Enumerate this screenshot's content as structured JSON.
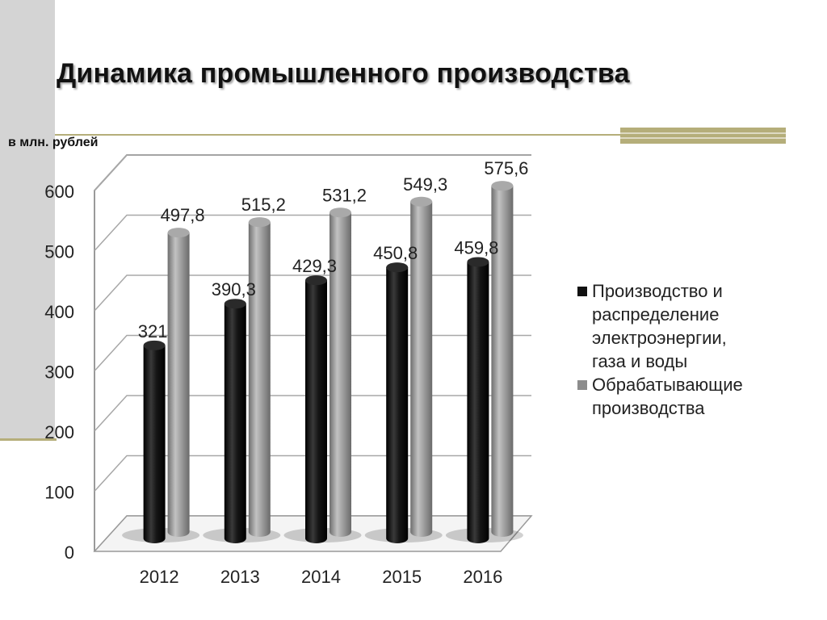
{
  "title": "Динамика промышленного производства",
  "unit_label": "в млн. рублей",
  "colors": {
    "series1": "#111111",
    "series2": "#8c8c8c",
    "accent": "#b5ae7a",
    "side_band": "#d4d4d4"
  },
  "chart_data": {
    "type": "bar",
    "style": "3d-cylinder",
    "title": "",
    "xlabel": "",
    "ylabel": "",
    "ylim": [
      0,
      600
    ],
    "y_ticks": [
      0,
      100,
      200,
      300,
      400,
      500,
      600
    ],
    "categories": [
      "2012",
      "2013",
      "2014",
      "2015",
      "2016"
    ],
    "grid": true,
    "legend_position": "right",
    "series": [
      {
        "name": "Производство и распределение электроэнергии, газа и воды",
        "values": [
          321,
          390.3,
          429.3,
          450.8,
          459.8
        ],
        "labels": [
          "321",
          "390,3",
          "429,3",
          "450,8",
          "459,8"
        ],
        "color": "#111111"
      },
      {
        "name": "Обрабатывающие производства",
        "values": [
          497.8,
          515.2,
          531.2,
          549.3,
          575.6
        ],
        "labels": [
          "497,8",
          "515,2",
          "531,2",
          "549,3",
          "575,6"
        ],
        "color": "#8c8c8c"
      }
    ]
  },
  "legend": {
    "items": [
      {
        "lines": [
          "Производство и",
          "распределение",
          "электроэнергии,",
          "газа и воды"
        ]
      },
      {
        "lines": [
          "Обрабатывающие",
          "производства"
        ]
      }
    ]
  }
}
